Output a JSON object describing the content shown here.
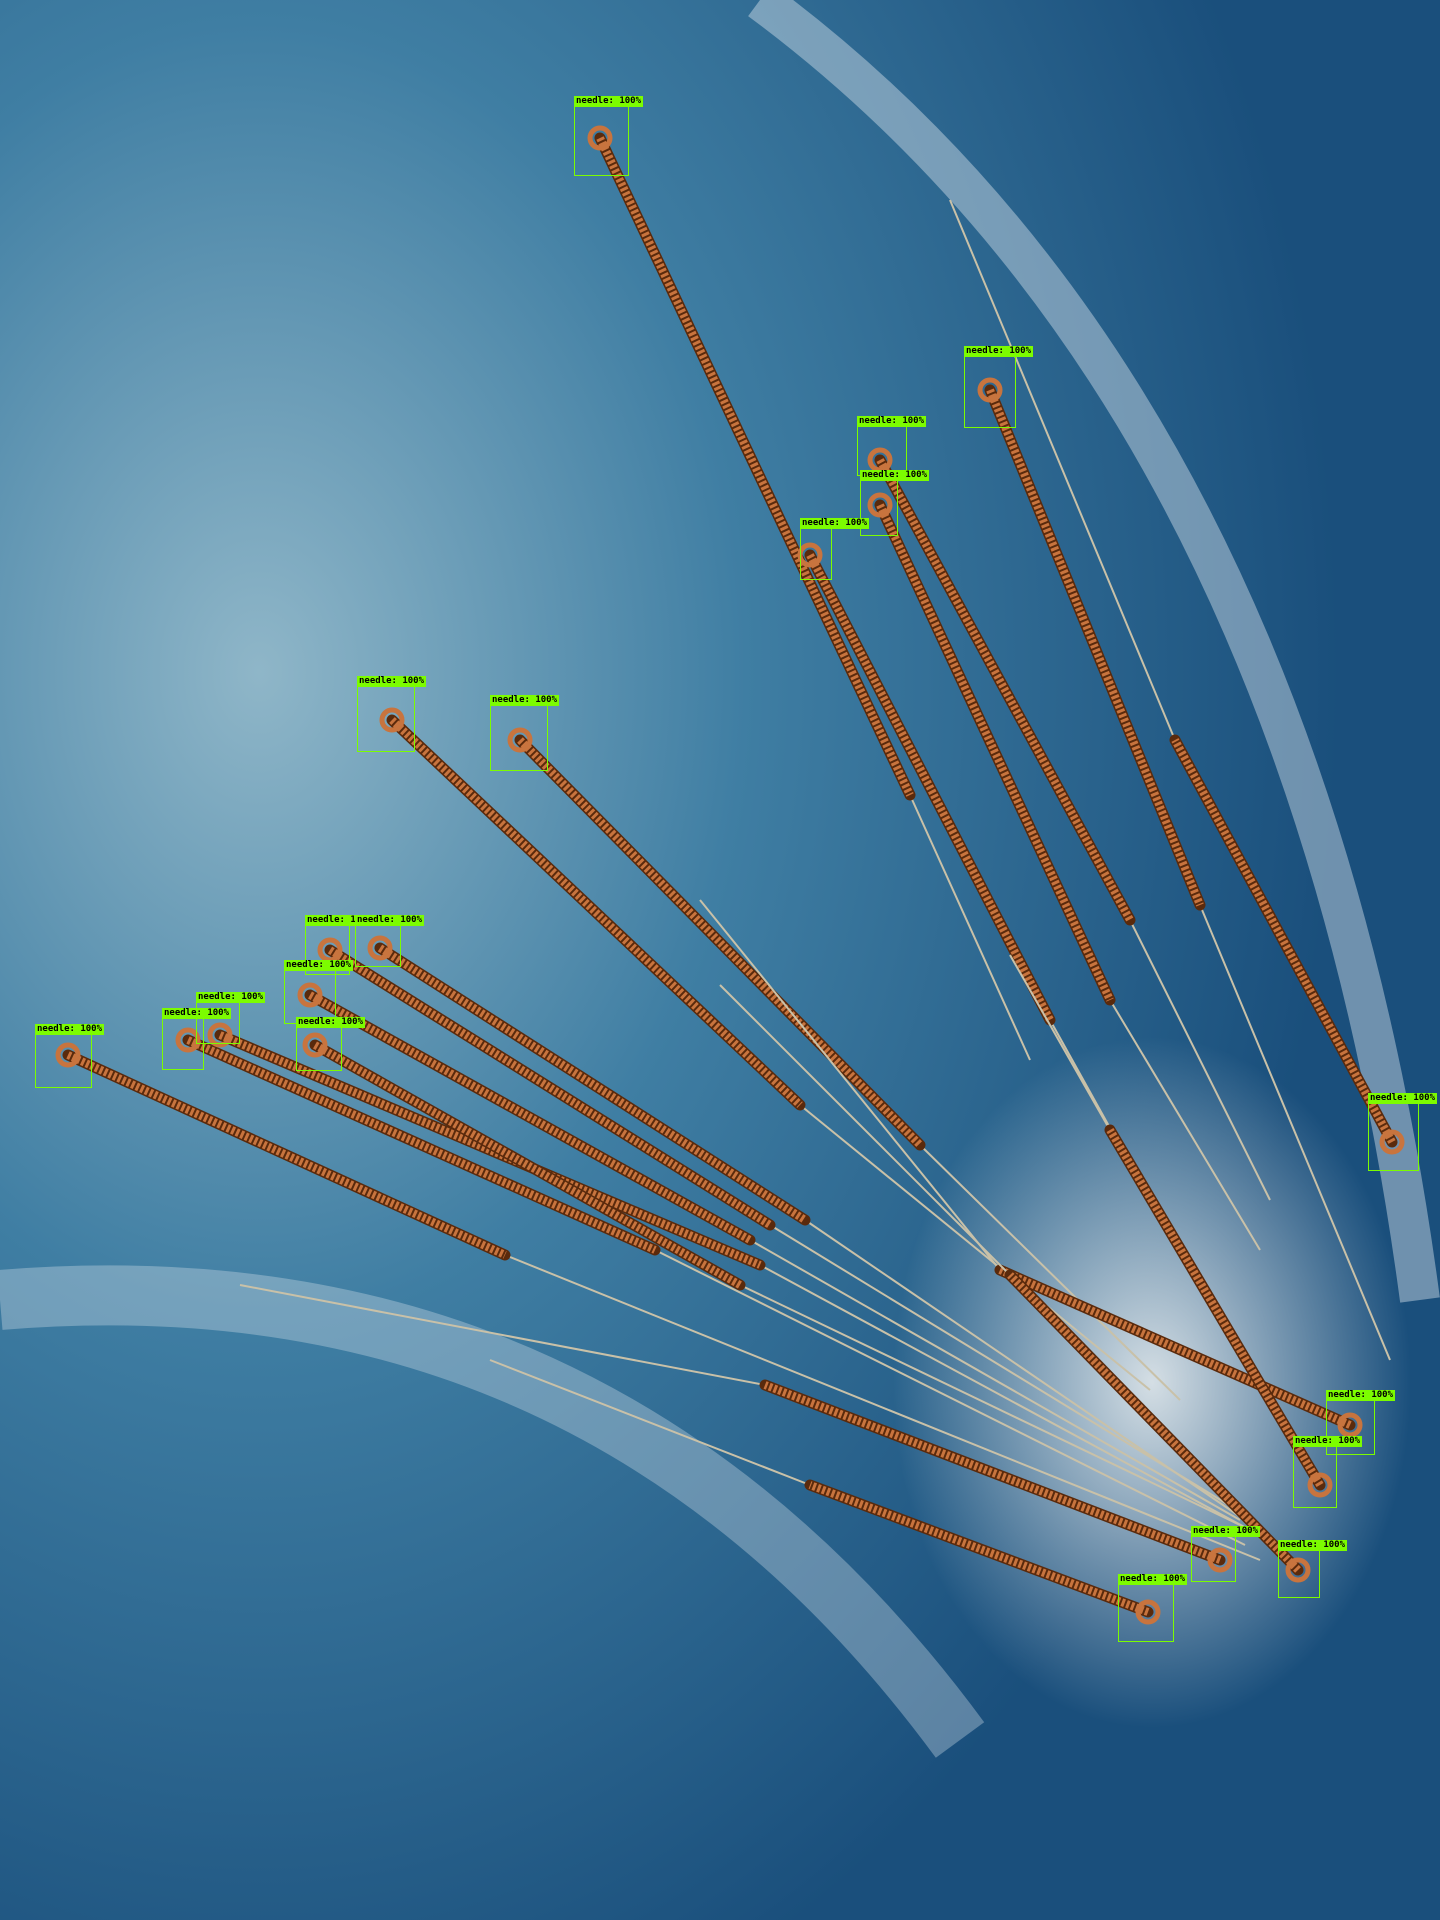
{
  "image": {
    "subject": "acupuncture needles with copper coiled handles on a blue surface",
    "background_color": "#1f5a86",
    "handle_color": "#c8743e",
    "box_color": "#7CFC00"
  },
  "detections": [
    {
      "label": "needle: 100%"
    },
    {
      "label": "needle: 100%"
    },
    {
      "label": "needle: 100%"
    },
    {
      "label": "needle: 100%"
    },
    {
      "label": "needle: 100%"
    },
    {
      "label": "needle: 100%"
    },
    {
      "label": "needle: 100%"
    },
    {
      "label": "needle: 100%"
    },
    {
      "label": "needle: 100%"
    },
    {
      "label": "needle: 100%"
    },
    {
      "label": "needle: 100%"
    },
    {
      "label": "needle: 100%"
    },
    {
      "label": "needle: 100%"
    },
    {
      "label": "needle: 100%"
    },
    {
      "label": "needle: 100%"
    },
    {
      "label": "needle: 100%"
    },
    {
      "label": "needle: 100%"
    },
    {
      "label": "needle: 100%"
    },
    {
      "label": "needle: 100%"
    },
    {
      "label": "needle: 100%"
    },
    {
      "label": "needle: 100%"
    }
  ]
}
